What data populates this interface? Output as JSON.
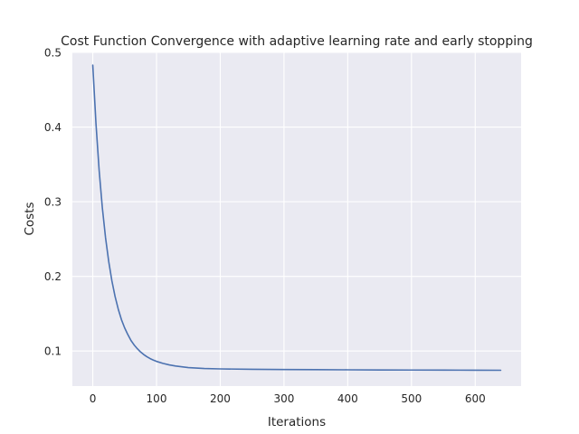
{
  "chart_data": {
    "type": "line",
    "title": "Cost Function Convergence with adaptive learning rate and early stopping",
    "xlabel": "Iterations",
    "ylabel": "Costs",
    "xlim": [
      -32,
      672
    ],
    "ylim": [
      0.053,
      0.5
    ],
    "xticks": [
      0,
      100,
      200,
      300,
      400,
      500,
      600
    ],
    "yticks": [
      0.1,
      0.2,
      0.3,
      0.4,
      0.5
    ],
    "xtick_labels": [
      "0",
      "100",
      "200",
      "300",
      "400",
      "500",
      "600"
    ],
    "ytick_labels": [
      "0.1",
      "0.2",
      "0.3",
      "0.4",
      "0.5"
    ],
    "grid": true,
    "style": {
      "background": "#eaeaf2",
      "grid_color": "#ffffff",
      "line_color": "#4c72b0"
    },
    "series": [
      {
        "x": [
          0,
          5,
          10,
          15,
          20,
          25,
          30,
          35,
          40,
          45,
          50,
          55,
          60,
          65,
          70,
          75,
          80,
          85,
          90,
          95,
          100,
          110,
          120,
          130,
          140,
          150,
          175,
          200,
          250,
          300,
          350,
          400,
          450,
          500,
          550,
          600,
          640
        ],
        "values": [
          0.483,
          0.405,
          0.342,
          0.292,
          0.252,
          0.22,
          0.194,
          0.173,
          0.156,
          0.142,
          0.131,
          0.122,
          0.114,
          0.108,
          0.103,
          0.0987,
          0.0952,
          0.0923,
          0.0898,
          0.0878,
          0.0861,
          0.0834,
          0.0814,
          0.0799,
          0.0788,
          0.0778,
          0.0766,
          0.076,
          0.0755,
          0.0752,
          0.075,
          0.0748,
          0.0746,
          0.0745,
          0.0744,
          0.0743,
          0.0742
        ]
      }
    ]
  }
}
